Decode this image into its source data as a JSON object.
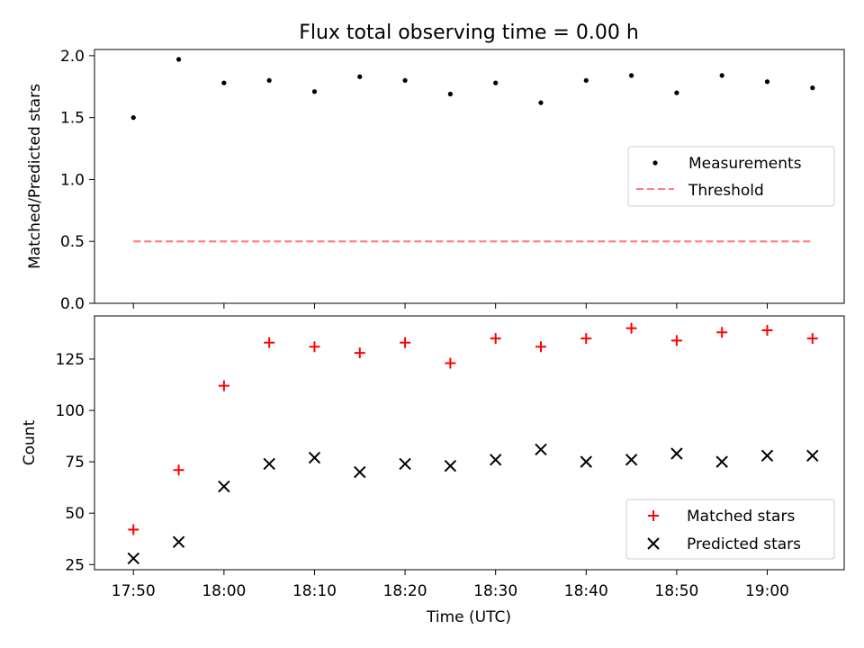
{
  "figure_title": "Flux total observing time = 0.00 h",
  "xlabel": "Time (UTC)",
  "chart_data": [
    {
      "type": "scatter",
      "panel": "top",
      "title": "Flux total observing time = 0.00 h",
      "xlabel": "",
      "ylabel": "Matched/Predicted stars",
      "x_unit": "minutes since 17:50 UTC",
      "xlim": [
        -4.3,
        78.5
      ],
      "ylim": [
        0.0,
        2.05
      ],
      "yticks": [
        0.0,
        0.5,
        1.0,
        1.5,
        2.0
      ],
      "ytick_labels": [
        "0.0",
        "0.5",
        "1.0",
        "1.5",
        "2.0"
      ],
      "series": [
        {
          "name": "Measurements",
          "kind": "scatter",
          "color": "#000000",
          "marker": "dot",
          "x": [
            0,
            5,
            10,
            15,
            20,
            25,
            30,
            35,
            40,
            45,
            50,
            55,
            60,
            65,
            70,
            75
          ],
          "y": [
            1.5,
            1.97,
            1.78,
            1.8,
            1.71,
            1.83,
            1.8,
            1.69,
            1.78,
            1.62,
            1.8,
            1.84,
            1.7,
            1.84,
            1.79,
            1.74
          ]
        },
        {
          "name": "Threshold",
          "kind": "line",
          "color": "#ff7f7f",
          "dash": "dashed",
          "x": [
            0,
            75
          ],
          "y": [
            0.5,
            0.5
          ]
        }
      ],
      "legend": [
        "Measurements",
        "Threshold"
      ],
      "legend_location": "center-right"
    },
    {
      "type": "scatter",
      "panel": "bottom",
      "xlabel": "Time (UTC)",
      "ylabel": "Count",
      "x_unit": "minutes since 17:50 UTC",
      "xlim": [
        -4.3,
        78.5
      ],
      "ylim": [
        22.5,
        146
      ],
      "xticks": [
        0,
        10,
        20,
        30,
        40,
        50,
        60,
        70
      ],
      "xtick_labels": [
        "17:50",
        "18:00",
        "18:10",
        "18:20",
        "18:30",
        "18:40",
        "18:50",
        "19:00"
      ],
      "yticks": [
        25,
        50,
        75,
        100,
        125
      ],
      "ytick_labels": [
        "25",
        "50",
        "75",
        "100",
        "125"
      ],
      "series": [
        {
          "name": "Matched stars",
          "kind": "scatter",
          "color": "#ff0000",
          "marker": "plus",
          "x": [
            0,
            5,
            10,
            15,
            20,
            25,
            30,
            35,
            40,
            45,
            50,
            55,
            60,
            65,
            70,
            75
          ],
          "y": [
            42,
            71,
            112,
            133,
            131,
            128,
            133,
            123,
            135,
            131,
            135,
            140,
            134,
            138,
            139,
            135
          ]
        },
        {
          "name": "Predicted stars",
          "kind": "scatter",
          "color": "#000000",
          "marker": "x",
          "x": [
            0,
            5,
            10,
            15,
            20,
            25,
            30,
            35,
            40,
            45,
            50,
            55,
            60,
            65,
            70,
            75
          ],
          "y": [
            28,
            36,
            63,
            74,
            77,
            70,
            74,
            73,
            76,
            81,
            75,
            76,
            79,
            75,
            78,
            78
          ]
        }
      ],
      "legend": [
        "Matched stars",
        "Predicted stars"
      ],
      "legend_location": "bottom-right"
    }
  ]
}
